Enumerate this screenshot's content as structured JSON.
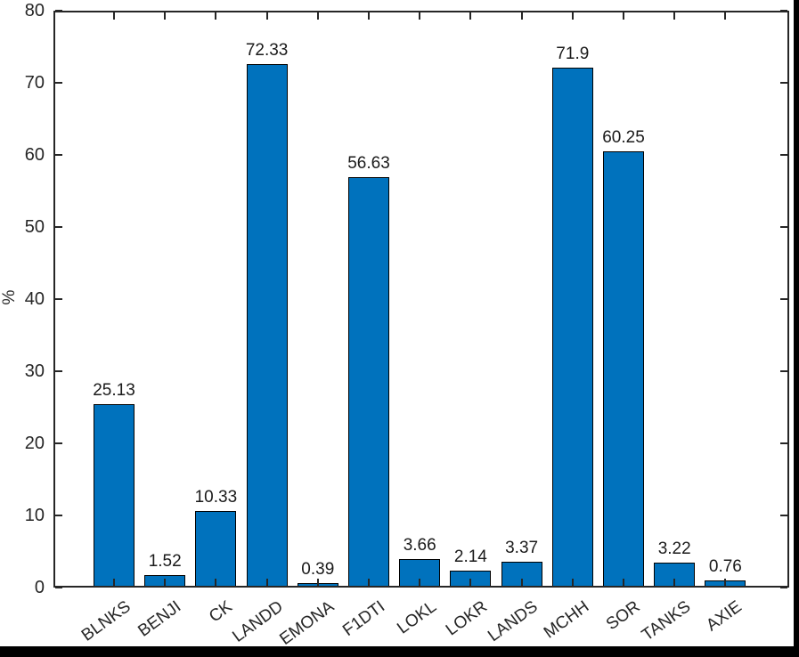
{
  "chart_data": {
    "type": "bar",
    "title": "",
    "xlabel": "",
    "ylabel": "%",
    "categories": [
      "BLNKS",
      "BENJI",
      "CK",
      "LANDD",
      "EMONA",
      "F1DTI",
      "LOKL",
      "LOKR",
      "LANDS",
      "MCHH",
      "SOR",
      "TANKS",
      "AXIE"
    ],
    "values": [
      25.13,
      1.52,
      10.33,
      72.33,
      0.39,
      56.63,
      3.66,
      2.14,
      3.37,
      71.9,
      60.25,
      3.22,
      0.76
    ],
    "value_labels": [
      "25.13",
      "1.52",
      "10.33",
      "72.33",
      "0.39",
      "56.63",
      "3.66",
      "2.14",
      "3.37",
      "71.9",
      "60.25",
      "3.22",
      "0.76"
    ],
    "ylim": [
      0,
      80
    ],
    "ytick_step": 10,
    "ytick_labels": [
      "0",
      "10",
      "20",
      "30",
      "40",
      "50",
      "60",
      "70",
      "80"
    ],
    "grid": false,
    "legend": null,
    "box": true,
    "colors": {
      "bar_fill": "#0072BD",
      "bar_edge": "#000000",
      "axis": "#262626",
      "tick_text": "#262626",
      "value_text": "#1a1a1a",
      "window_border": "#000000"
    }
  }
}
